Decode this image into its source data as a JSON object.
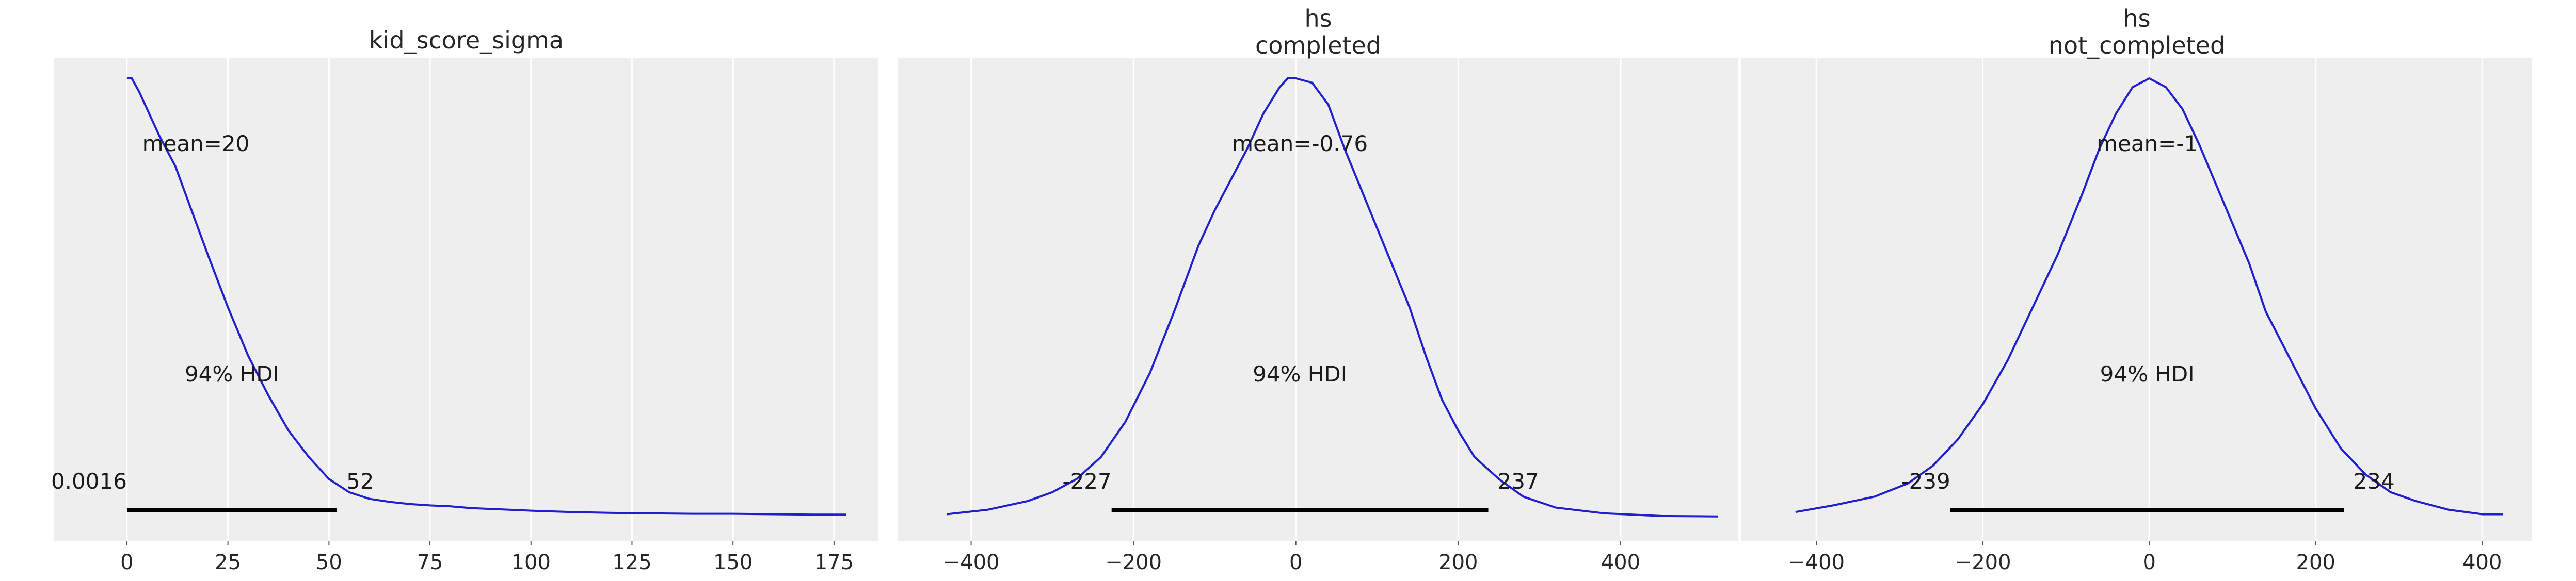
{
  "chart_data": [
    {
      "type": "line",
      "title": [
        "kid_score_sigma"
      ],
      "xlim": [
        -18,
        186
      ],
      "xticks": [
        0,
        25,
        50,
        75,
        100,
        125,
        150,
        175
      ],
      "tick_labels": [
        "0",
        "25",
        "50",
        "75",
        "100",
        "125",
        "150",
        "175"
      ],
      "mean_label": "mean=20",
      "hdi_label": "94% HDI",
      "hdi": [
        0.0016,
        52
      ],
      "hdi_low_label": "0.0016",
      "hdi_high_label": "52",
      "density_x": [
        0,
        1.2,
        3,
        5,
        8,
        12,
        16,
        20,
        25,
        30,
        35,
        40,
        45,
        50,
        55,
        60,
        65,
        70,
        75,
        80,
        85,
        90,
        95,
        100,
        110,
        120,
        130,
        140,
        150,
        160,
        170,
        178
      ],
      "density_y": [
        1.0,
        1.0,
        0.97,
        0.93,
        0.87,
        0.8,
        0.7,
        0.6,
        0.48,
        0.37,
        0.28,
        0.2,
        0.14,
        0.09,
        0.06,
        0.045,
        0.038,
        0.033,
        0.03,
        0.028,
        0.024,
        0.022,
        0.02,
        0.018,
        0.015,
        0.013,
        0.012,
        0.011,
        0.011,
        0.01,
        0.009,
        0.009
      ]
    },
    {
      "type": "line",
      "title": [
        "hs",
        "completed"
      ],
      "xlim": [
        -490,
        545
      ],
      "xticks": [
        -400,
        -200,
        0,
        200,
        400
      ],
      "tick_labels": [
        "−400",
        "−200",
        "0",
        "200",
        "400"
      ],
      "mean_label": "mean=-0.76",
      "hdi_label": "94% HDI",
      "hdi": [
        -227,
        237
      ],
      "hdi_low_label": "-227",
      "hdi_high_label": "237",
      "density_x": [
        -430,
        -380,
        -330,
        -300,
        -270,
        -240,
        -210,
        -180,
        -150,
        -120,
        -100,
        -80,
        -60,
        -40,
        -20,
        -10,
        0,
        20,
        40,
        60,
        80,
        100,
        120,
        140,
        160,
        180,
        200,
        220,
        250,
        280,
        320,
        380,
        450,
        520
      ],
      "density_y": [
        0.01,
        0.02,
        0.04,
        0.06,
        0.09,
        0.14,
        0.22,
        0.33,
        0.47,
        0.62,
        0.7,
        0.77,
        0.84,
        0.92,
        0.98,
        1.0,
        1.0,
        0.99,
        0.94,
        0.84,
        0.75,
        0.66,
        0.57,
        0.48,
        0.37,
        0.27,
        0.2,
        0.14,
        0.09,
        0.05,
        0.025,
        0.012,
        0.006,
        0.005
      ]
    },
    {
      "type": "line",
      "title": [
        "hs",
        "not_completed"
      ],
      "xlim": [
        -490,
        460
      ],
      "xticks": [
        -400,
        -200,
        0,
        200,
        400
      ],
      "tick_labels": [
        "−400",
        "−200",
        "0",
        "200",
        "400"
      ],
      "mean_label": "mean=-1",
      "hdi_label": "94% HDI",
      "hdi": [
        -239,
        234
      ],
      "hdi_low_label": "-239",
      "hdi_high_label": "234",
      "density_x": [
        -425,
        -380,
        -330,
        -290,
        -260,
        -230,
        -200,
        -170,
        -140,
        -110,
        -80,
        -60,
        -40,
        -20,
        0,
        20,
        40,
        60,
        80,
        100,
        120,
        140,
        170,
        200,
        230,
        260,
        290,
        320,
        360,
        400,
        425
      ],
      "density_y": [
        0.015,
        0.03,
        0.05,
        0.08,
        0.12,
        0.18,
        0.26,
        0.36,
        0.48,
        0.6,
        0.74,
        0.84,
        0.92,
        0.98,
        1.0,
        0.98,
        0.93,
        0.85,
        0.76,
        0.67,
        0.58,
        0.47,
        0.36,
        0.25,
        0.16,
        0.1,
        0.06,
        0.04,
        0.02,
        0.01,
        0.01
      ]
    }
  ]
}
